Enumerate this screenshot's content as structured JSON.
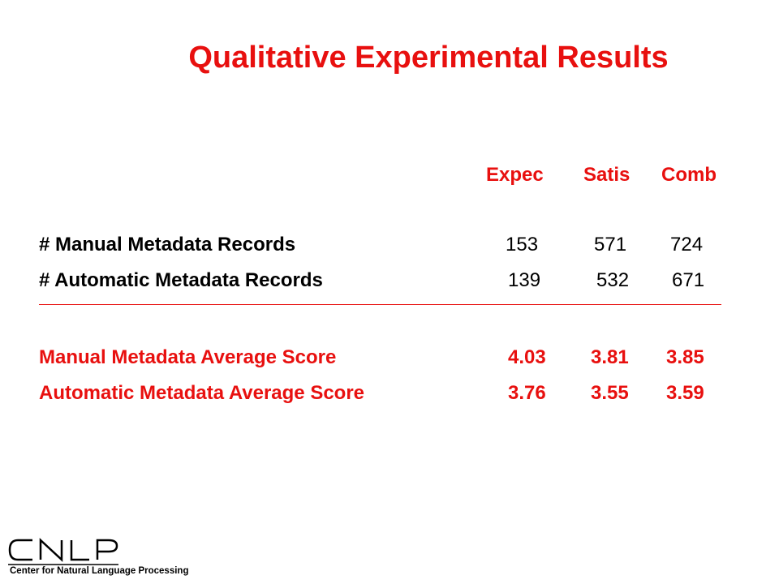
{
  "title": "Qualitative Experimental Results",
  "columns": [
    "Expec",
    "Satis",
    "Comb"
  ],
  "rows": [
    {
      "label": "# Manual Metadata Records",
      "values": [
        "153",
        "571",
        "724"
      ]
    },
    {
      "label": "# Automatic Metadata Records",
      "values": [
        "139",
        "532",
        "671"
      ]
    },
    {
      "label": "Manual Metadata Average Score",
      "values": [
        "4.03",
        "3.81",
        "3.85"
      ]
    },
    {
      "label": "Automatic Metadata Average Score",
      "values": [
        "3.76",
        "3.55",
        "3.59"
      ]
    }
  ],
  "logo": {
    "wordmark": "CNLP",
    "subtitle": "Center for Natural Language Processing"
  },
  "colors": {
    "accent": "#e8100f",
    "text": "#000000"
  }
}
